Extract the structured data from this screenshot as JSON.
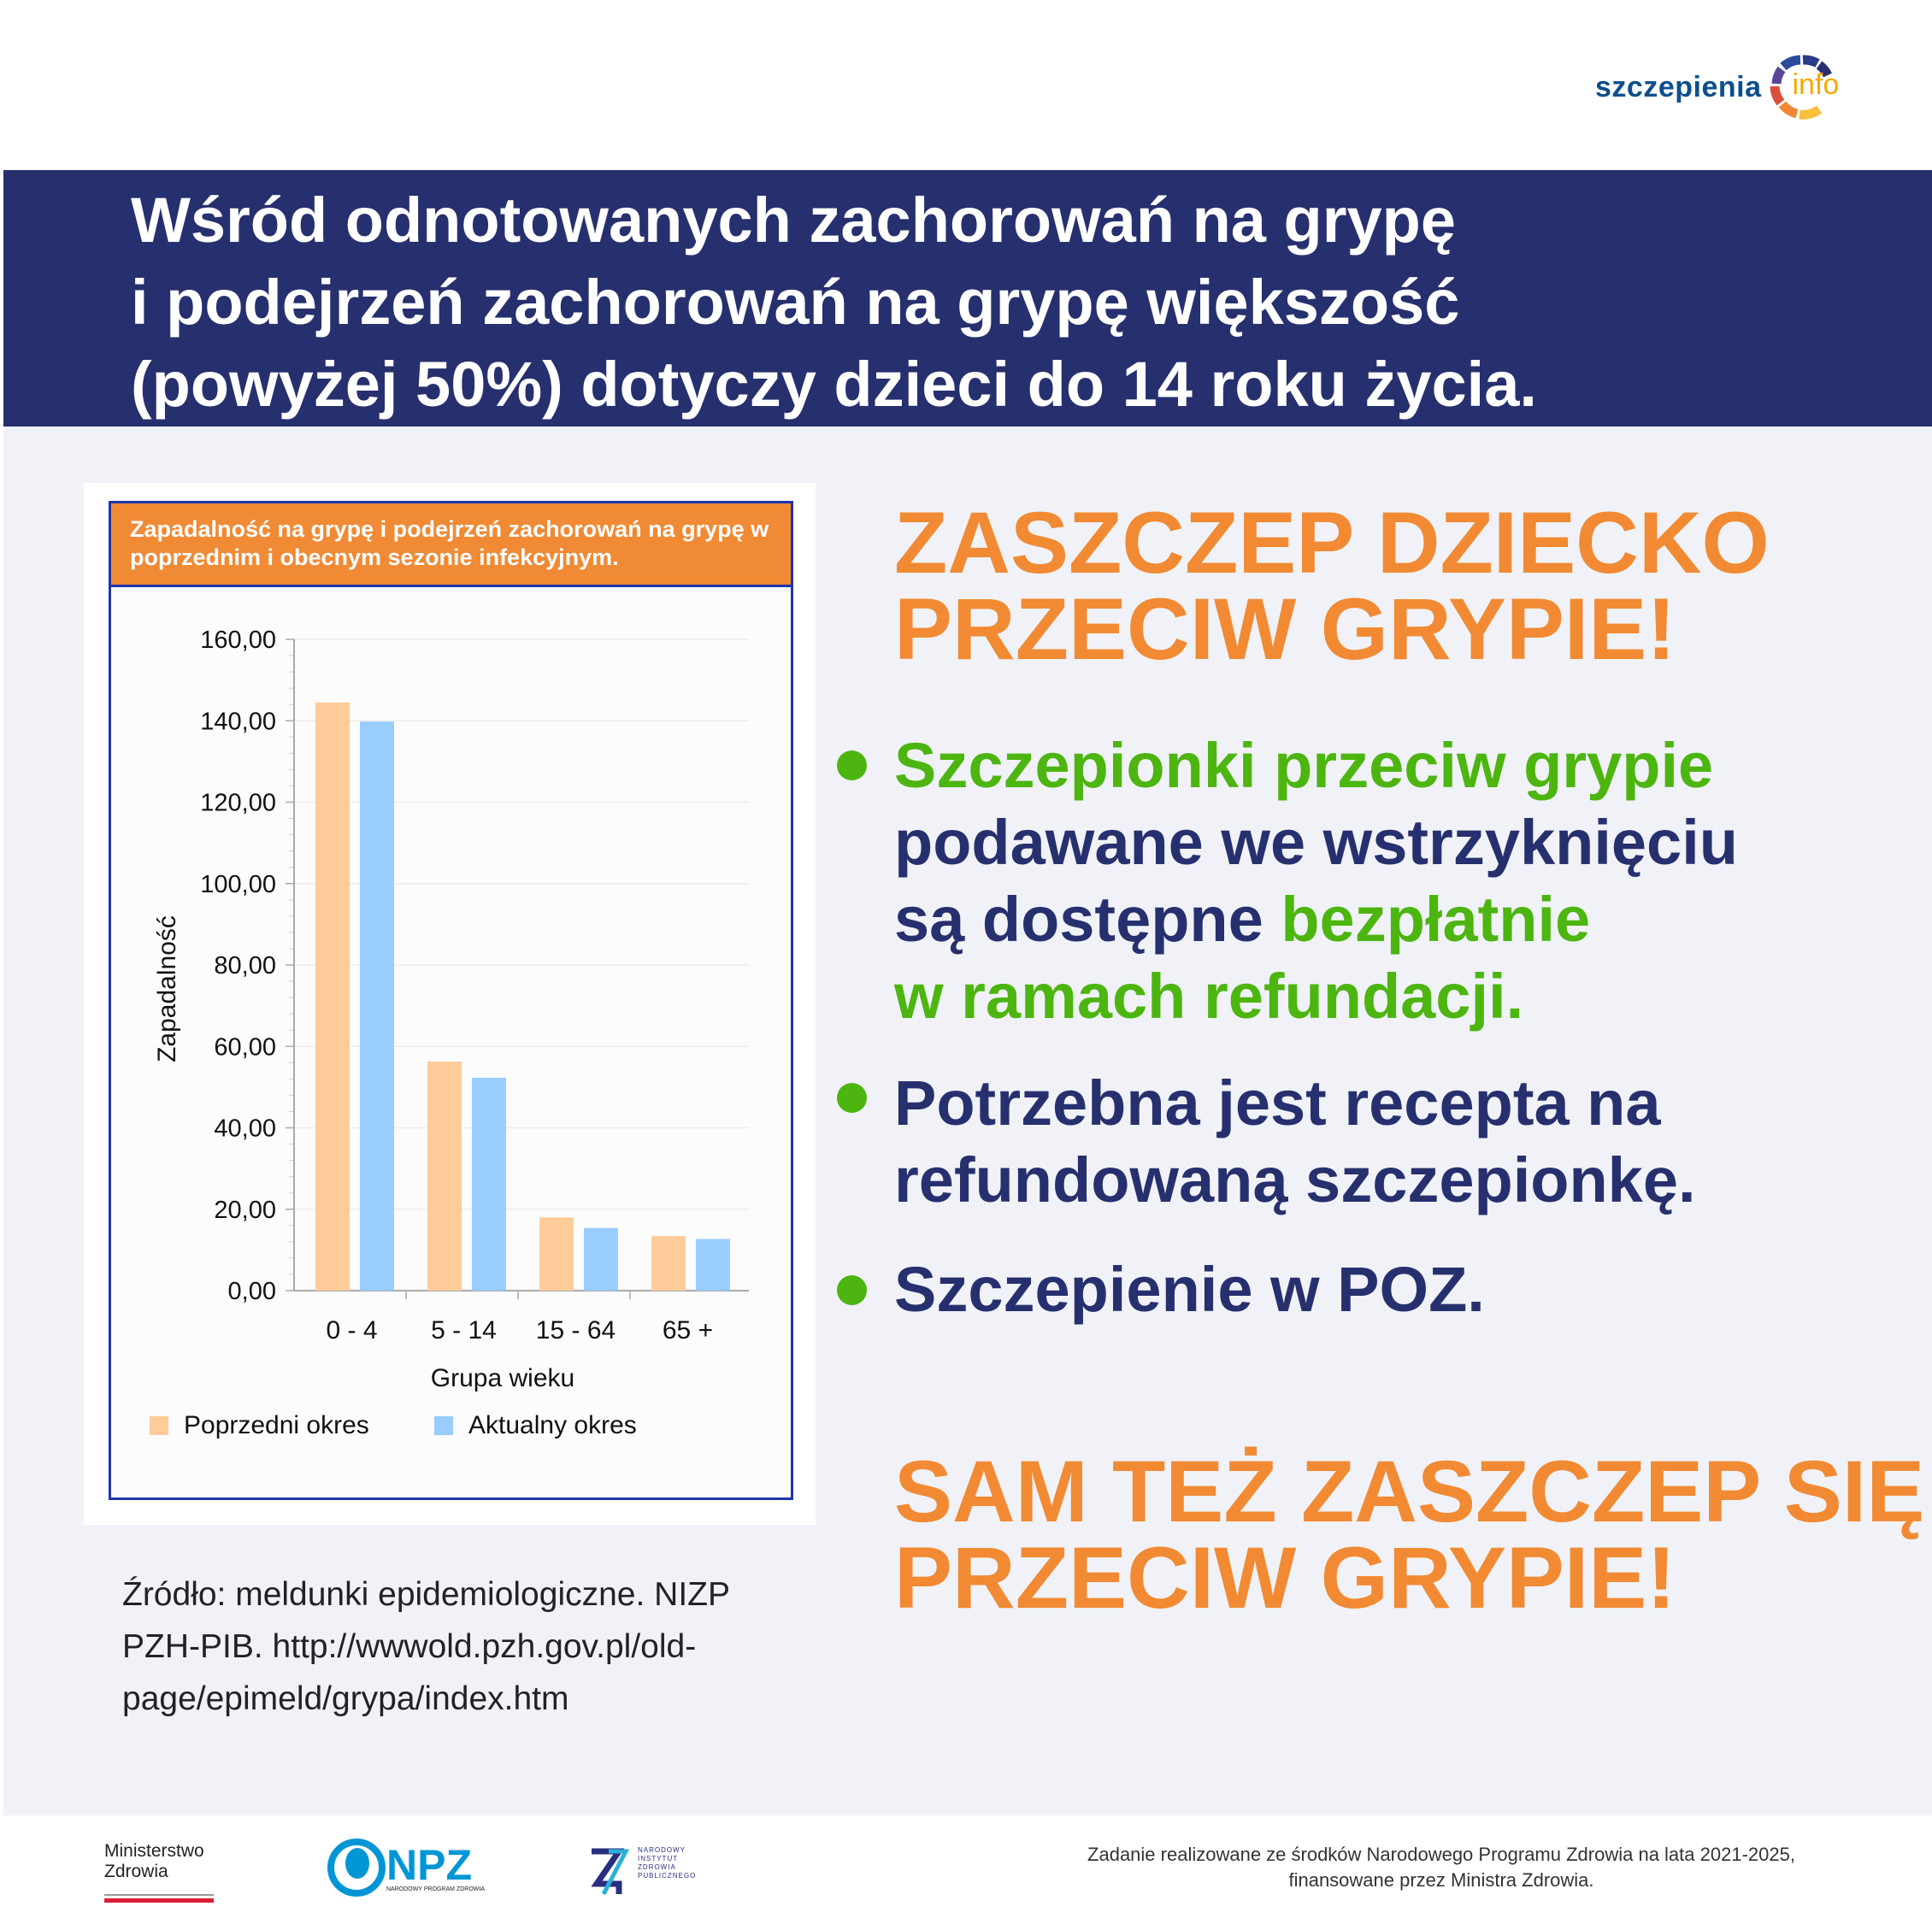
{
  "logo": {
    "text1": "szczepienia",
    "text2": "info"
  },
  "header": {
    "lines": [
      "Wśród odnotowanych zachorowań na grypę",
      "i podejrzeń zachorowań na grypę większość",
      "(powyżej 50%) dotyczy dzieci do 14 roku życia."
    ]
  },
  "chart_data": {
    "type": "bar",
    "title": "Zapadalność na grypę i podejrzeń zachorowań na grypę w poprzednim i obecnym sezonie infekcyjnym.",
    "categories": [
      "0 - 4",
      "5 - 14",
      "15 - 64",
      "65 +"
    ],
    "series": [
      {
        "name": "Poprzedni okres",
        "color": "#ffcc99",
        "values": [
          144.5,
          56.3,
          18.0,
          13.4
        ]
      },
      {
        "name": "Aktualny okres",
        "color": "#99ccff",
        "values": [
          139.8,
          52.3,
          15.4,
          12.7
        ]
      }
    ],
    "xlabel": "Grupa wieku",
    "ylabel": "Zapadalność",
    "ylim": [
      0,
      160
    ],
    "yticks": [
      "0,00",
      "20,00",
      "40,00",
      "60,00",
      "80,00",
      "100,00",
      "120,00",
      "140,00",
      "160,00"
    ],
    "legend": "bottom",
    "grid": true
  },
  "source": [
    "Źródło: meldunki epidemiologiczne. NIZP",
    "PZH-PIB. http://wwwold.pzh.gov.pl/old-",
    "page/epimeld/grypa/index.htm"
  ],
  "right": {
    "cta1": [
      "ZASZCZEP DZIECKO",
      "PRZECIW GRYPIE!"
    ],
    "b1": {
      "g1": "Szczepionki przeciw grypie",
      "n1": "podawane we wstrzyknięciu",
      "n2": "są dostępne ",
      "g2": "bezpłatnie",
      "g3": "w ramach refundacji."
    },
    "b2": [
      "Potrzebna jest recepta na",
      "refundowaną szczepionkę."
    ],
    "b3": "Szczepienie w POZ.",
    "cta2": [
      "SAM TEŻ ZASZCZEP SIĘ",
      "PRZECIW GRYPIE!"
    ]
  },
  "footer": {
    "mz": [
      "Ministerstwo",
      "Zdrowia"
    ],
    "npz": "NPZ",
    "npz_sub": "NARODOWY PROGRAM ZDROWIA",
    "nizp": [
      "NARODOWY",
      "INSTYTUT",
      "ZDROWIA",
      "PUBLICZNEGO"
    ],
    "text": [
      "Zadanie realizowane ze środków Narodowego Programu Zdrowia na lata 2021-2025,",
      "finansowane przez Ministra Zdrowia."
    ]
  }
}
